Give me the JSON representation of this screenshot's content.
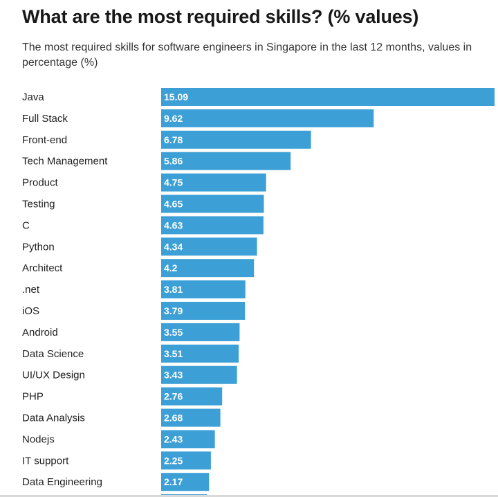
{
  "chart_data": {
    "type": "bar",
    "orientation": "horizontal",
    "title": "What are the most required skills? (% values)",
    "subtitle": "The most required skills for software engineers in Singapore in the last 12 months, values in percentage (%)",
    "categories": [
      "Java",
      "Full Stack",
      "Front-end",
      "Tech Management",
      "Product",
      "Testing",
      "C",
      "Python",
      "Architect",
      ".net",
      "iOS",
      "Android",
      "Data Science",
      "UI/UX Design",
      "PHP",
      "Data Analysis",
      "Nodejs",
      "IT support",
      "Data Engineering"
    ],
    "values": [
      15.09,
      9.62,
      6.78,
      5.86,
      4.75,
      4.65,
      4.63,
      4.34,
      4.2,
      3.81,
      3.79,
      3.55,
      3.51,
      3.43,
      2.76,
      2.68,
      2.43,
      2.25,
      2.17
    ],
    "value_labels": [
      "15.09",
      "9.62",
      "6.78",
      "5.86",
      "4.75",
      "4.65",
      "4.63",
      "4.34",
      "4.2",
      "3.81",
      "3.79",
      "3.55",
      "3.51",
      "3.43",
      "2.76",
      "2.68",
      "2.43",
      "2.25",
      "2.17"
    ],
    "xlim": [
      0,
      15.09
    ],
    "bar_color": "#3c9fd6",
    "grid": false,
    "legend": "none"
  }
}
